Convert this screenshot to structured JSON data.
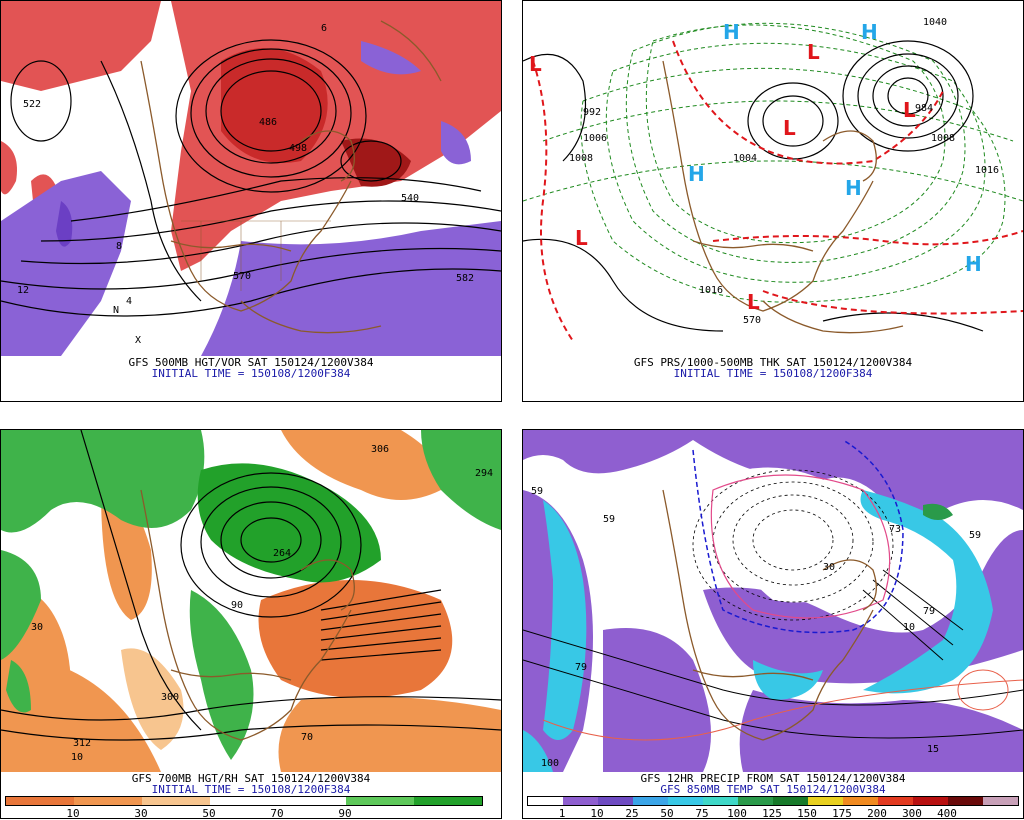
{
  "panels": [
    {
      "id": "p1",
      "caption1": "GFS 500MB HGT/VOR SAT 150124/1200V384",
      "caption2": "INITIAL TIME = 150108/1200F384",
      "labels": [
        "522",
        "486",
        "498",
        "540",
        "570",
        "582",
        "6",
        "8",
        "4",
        "12",
        "N",
        "X"
      ]
    },
    {
      "id": "p2",
      "caption1": "GFS PRS/1000-500MB THK SAT 150124/1200V384",
      "caption2": "INITIAL TIME = 150108/1200F384",
      "highs": [
        "H",
        "H",
        "H",
        "H",
        "H"
      ],
      "lows": [
        "L",
        "L",
        "L",
        "L",
        "L",
        "L"
      ],
      "labels": [
        "992",
        "1008",
        "1006",
        "1004",
        "1016",
        "1040",
        "570",
        "984",
        "1008",
        "1016"
      ]
    },
    {
      "id": "p3",
      "caption1": "GFS 700MB HGT/RH SAT 150124/1200V384",
      "caption2": "INITIAL TIME = 150108/1200F384",
      "labels": [
        "306",
        "294",
        "264",
        "312",
        "300",
        "10",
        "90",
        "70",
        "30"
      ],
      "colorbar": {
        "colors": [
          "#e8763a",
          "#f09650",
          "#f7c58f",
          "#ffffff",
          "#ffffff",
          "#5ec85a",
          "#22a12a"
        ],
        "labels": [
          "10",
          "30",
          "50",
          "70",
          "90"
        ]
      }
    },
    {
      "id": "p4",
      "caption1": "GFS 12HR PRECIP FROM SAT 150124/1200V384",
      "caption2": "GFS 850MB TEMP SAT 150124/1200V384",
      "labels": [
        "59",
        "59",
        "59",
        "79",
        "73",
        "79",
        "100",
        "15",
        "30",
        "10"
      ],
      "colorbar": {
        "colors": [
          "#ffffff",
          "#8f5fd0",
          "#6e4bc2",
          "#3ba5e8",
          "#38c8e6",
          "#3fd8c8",
          "#2a9a4a",
          "#177a2a",
          "#e8d020",
          "#f08a20",
          "#e23a20",
          "#b81010",
          "#6a0a0a",
          "#c8a0b8"
        ],
        "labels": [
          "1",
          "10",
          "25",
          "50",
          "75",
          "100",
          "125",
          "150",
          "175",
          "200",
          "300",
          "400"
        ]
      }
    }
  ]
}
